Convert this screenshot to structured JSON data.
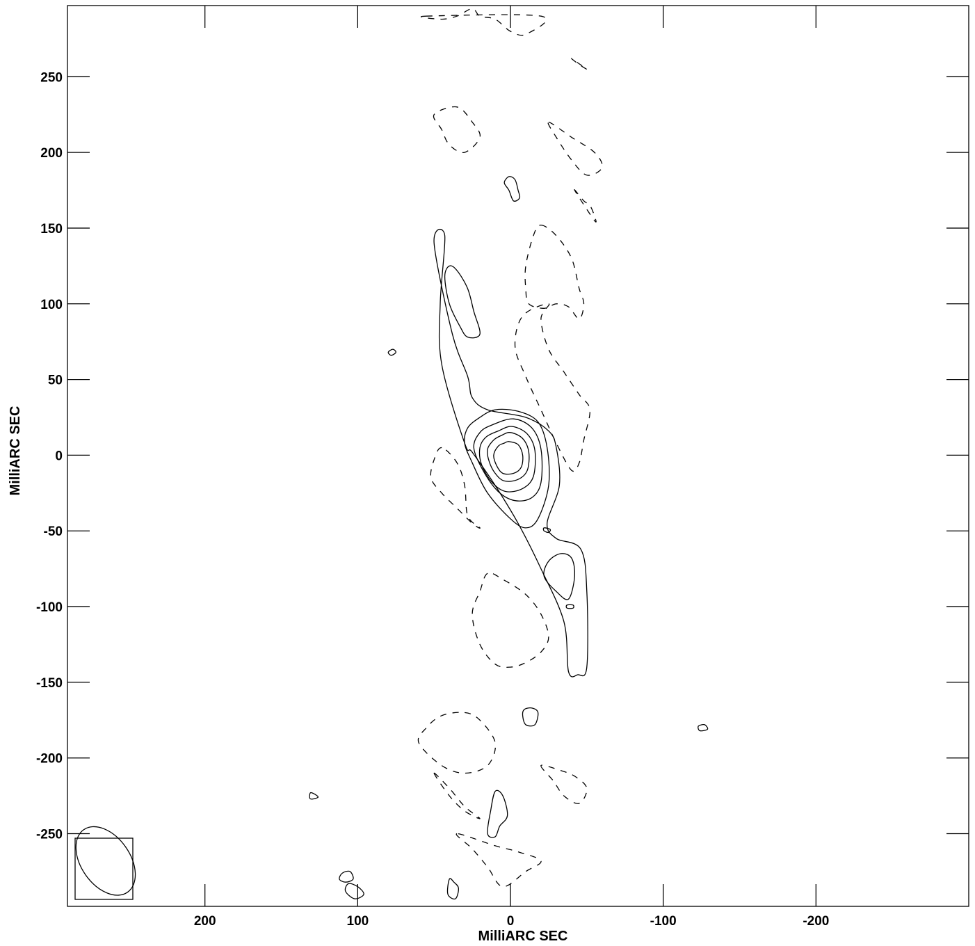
{
  "chart_data": {
    "type": "contour",
    "xlabel": "MilliARC SEC",
    "ylabel": "MilliARC SEC",
    "xlim": [
      290,
      -300
    ],
    "ylim": [
      -298,
      297
    ],
    "x_reversed": true,
    "grid": false,
    "legend": "none",
    "xticks": [
      200,
      100,
      0,
      -100,
      -200
    ],
    "yticks": [
      250,
      200,
      150,
      100,
      50,
      0,
      -50,
      -100,
      -150,
      -200,
      -250
    ],
    "xtick_labels": [
      "200",
      "100",
      "0",
      "-100",
      "-200"
    ],
    "ytick_labels": [
      "250",
      "200",
      "150",
      "100",
      "50",
      "0",
      "-50",
      "-100",
      "-150",
      "-200",
      "-250"
    ],
    "beam": {
      "center": [
        265,
        -268
      ],
      "major": 25,
      "minor": 16,
      "pa_deg": 35
    },
    "positive_contours": [
      {
        "level": 1,
        "points": [
          [
            43,
            145
          ],
          [
            50,
            140
          ],
          [
            38,
            80
          ],
          [
            28,
            52
          ],
          [
            25,
            38
          ],
          [
            15,
            30
          ],
          [
            -10,
            25
          ],
          [
            -25,
            16
          ],
          [
            -30,
            5
          ],
          [
            -32,
            -20
          ],
          [
            -24,
            -45
          ],
          [
            -30,
            -55
          ],
          [
            -46,
            -62
          ],
          [
            -50,
            -90
          ],
          [
            -50,
            -140
          ],
          [
            -44,
            -145
          ],
          [
            -38,
            -143
          ],
          [
            -35,
            -110
          ],
          [
            -20,
            -75
          ],
          [
            -5,
            -45
          ],
          [
            10,
            -20
          ],
          [
            25,
            2
          ],
          [
            30,
            8
          ],
          [
            45,
            60
          ],
          [
            46,
            100
          ]
        ]
      },
      {
        "level": 2,
        "points": [
          [
            -5,
            29
          ],
          [
            -18,
            22
          ],
          [
            -24,
            5
          ],
          [
            -25,
            -20
          ],
          [
            -18,
            -42
          ],
          [
            -10,
            -48
          ],
          [
            0,
            -42
          ],
          [
            15,
            -25
          ],
          [
            25,
            -5
          ],
          [
            30,
            8
          ],
          [
            28,
            18
          ],
          [
            20,
            25
          ],
          [
            10,
            30
          ]
        ]
      },
      {
        "level": 3,
        "points": [
          [
            -2,
            24
          ],
          [
            -14,
            18
          ],
          [
            -20,
            4
          ],
          [
            -20,
            -18
          ],
          [
            -14,
            -28
          ],
          [
            -3,
            -30
          ],
          [
            8,
            -24
          ],
          [
            18,
            -10
          ],
          [
            24,
            5
          ],
          [
            20,
            15
          ],
          [
            12,
            20
          ]
        ]
      },
      {
        "level": 4,
        "points": [
          [
            -1,
            19
          ],
          [
            -11,
            14
          ],
          [
            -16,
            3
          ],
          [
            -15,
            -14
          ],
          [
            -8,
            -22
          ],
          [
            3,
            -24
          ],
          [
            12,
            -18
          ],
          [
            19,
            -6
          ],
          [
            20,
            5
          ],
          [
            16,
            12
          ],
          [
            8,
            16
          ]
        ]
      },
      {
        "level": 5,
        "points": [
          [
            0,
            15
          ],
          [
            -8,
            11
          ],
          [
            -12,
            2
          ],
          [
            -11,
            -10
          ],
          [
            -5,
            -16
          ],
          [
            4,
            -17
          ],
          [
            10,
            -12
          ],
          [
            14,
            -4
          ],
          [
            15,
            4
          ],
          [
            11,
            10
          ],
          [
            6,
            13
          ]
        ]
      },
      {
        "level": 6,
        "points": [
          [
            1,
            9
          ],
          [
            -5,
            7
          ],
          [
            -8,
            0
          ],
          [
            -7,
            -8
          ],
          [
            -2,
            -12
          ],
          [
            5,
            -12
          ],
          [
            9,
            -7
          ],
          [
            11,
            0
          ],
          [
            8,
            6
          ],
          [
            4,
            8
          ]
        ]
      },
      {
        "level": 2,
        "points": [
          [
            40,
            125
          ],
          [
            35,
            122
          ],
          [
            28,
            110
          ],
          [
            24,
            95
          ],
          [
            20,
            80
          ],
          [
            28,
            78
          ],
          [
            33,
            85
          ],
          [
            40,
            100
          ],
          [
            43,
            118
          ]
        ]
      },
      {
        "level": 2,
        "points": [
          [
            -25,
            -70
          ],
          [
            -33,
            -65
          ],
          [
            -40,
            -68
          ],
          [
            -42,
            -80
          ],
          [
            -38,
            -95
          ],
          [
            -30,
            -90
          ],
          [
            -22,
            -80
          ]
        ]
      },
      {
        "level": 1,
        "points": [
          [
            1,
            175
          ],
          [
            4,
            180
          ],
          [
            1,
            184
          ],
          [
            -3,
            182
          ],
          [
            -5,
            175
          ],
          [
            -6,
            170
          ],
          [
            -2,
            168
          ]
        ]
      },
      {
        "level": 1,
        "points": [
          [
            5,
            -225
          ],
          [
            10,
            -222
          ],
          [
            13,
            -235
          ],
          [
            15,
            -250
          ],
          [
            10,
            -252
          ],
          [
            7,
            -245
          ],
          [
            2,
            -238
          ]
        ]
      },
      {
        "level": 1,
        "points": [
          [
            -9,
            -168
          ],
          [
            -14,
            -167
          ],
          [
            -18,
            -170
          ],
          [
            -16,
            -178
          ],
          [
            -10,
            -178
          ],
          [
            -8,
            -172
          ]
        ]
      },
      {
        "level": 1,
        "points": [
          [
            105,
            -275
          ],
          [
            110,
            -276
          ],
          [
            112,
            -280
          ],
          [
            108,
            -282
          ],
          [
            103,
            -280
          ]
        ]
      },
      {
        "level": 1,
        "points": [
          [
            100,
            -285
          ],
          [
            106,
            -283
          ],
          [
            108,
            -288
          ],
          [
            102,
            -293
          ],
          [
            96,
            -290
          ]
        ]
      },
      {
        "level": 1,
        "points": [
          [
            77,
            70
          ],
          [
            80,
            68
          ],
          [
            78,
            66
          ],
          [
            75,
            68
          ]
        ]
      },
      {
        "level": 1,
        "points": [
          [
            128,
            -224
          ],
          [
            131,
            -223
          ],
          [
            131,
            -227
          ],
          [
            126,
            -226
          ]
        ]
      },
      {
        "level": 1,
        "points": [
          [
            -123,
            -179
          ],
          [
            -127,
            -178
          ],
          [
            -129,
            -181
          ],
          [
            -124,
            -182
          ]
        ]
      },
      {
        "level": 1,
        "points": [
          [
            37,
            -282
          ],
          [
            40,
            -280
          ],
          [
            41,
            -290
          ],
          [
            36,
            -293
          ],
          [
            34,
            -286
          ]
        ]
      },
      {
        "level": 1,
        "points": [
          [
            -37,
            -99
          ],
          [
            -41,
            -99
          ],
          [
            -41,
            -101
          ],
          [
            -37,
            -101
          ]
        ]
      },
      {
        "level": 1,
        "points": [
          [
            -22,
            -48
          ],
          [
            -26,
            -49
          ],
          [
            -25,
            -51
          ],
          [
            -22,
            -50
          ]
        ]
      }
    ],
    "negative_contours": [
      {
        "level": -1,
        "points": [
          [
            -20,
            152
          ],
          [
            -30,
            145
          ],
          [
            -40,
            130
          ],
          [
            -45,
            110
          ],
          [
            -48,
            100
          ],
          [
            -45,
            90
          ],
          [
            -38,
            98
          ],
          [
            -30,
            100
          ],
          [
            -22,
            97
          ],
          [
            -12,
            100
          ],
          [
            -10,
            110
          ],
          [
            -10,
            125
          ],
          [
            -15,
            145
          ]
        ]
      },
      {
        "level": -1,
        "points": [
          [
            -25,
            100
          ],
          [
            -20,
            90
          ],
          [
            -25,
            70
          ],
          [
            -35,
            55
          ],
          [
            -45,
            40
          ],
          [
            -52,
            30
          ],
          [
            -48,
            10
          ],
          [
            -45,
            -5
          ],
          [
            -40,
            -10
          ],
          [
            -30,
            8
          ],
          [
            -20,
            30
          ],
          [
            -10,
            52
          ],
          [
            -3,
            72
          ],
          [
            -8,
            92
          ]
        ]
      },
      {
        "level": -1,
        "points": [
          [
            45,
            5
          ],
          [
            50,
            -3
          ],
          [
            52,
            -15
          ],
          [
            45,
            -25
          ],
          [
            35,
            -35
          ],
          [
            25,
            -45
          ],
          [
            20,
            -48
          ],
          [
            28,
            -40
          ],
          [
            30,
            -20
          ],
          [
            35,
            -5
          ]
        ]
      },
      {
        "level": -1,
        "points": [
          [
            15,
            -78
          ],
          [
            20,
            -90
          ],
          [
            25,
            -105
          ],
          [
            20,
            -125
          ],
          [
            10,
            -138
          ],
          [
            0,
            -140
          ],
          [
            -10,
            -137
          ],
          [
            -20,
            -130
          ],
          [
            -25,
            -120
          ],
          [
            -20,
            -105
          ],
          [
            -10,
            -92
          ],
          [
            5,
            -82
          ]
        ]
      },
      {
        "level": -1,
        "points": [
          [
            50,
            225
          ],
          [
            45,
            215
          ],
          [
            40,
            205
          ],
          [
            30,
            200
          ],
          [
            20,
            210
          ],
          [
            25,
            220
          ],
          [
            35,
            230
          ]
        ]
      },
      {
        "level": -1,
        "points": [
          [
            -25,
            220
          ],
          [
            -40,
            210
          ],
          [
            -55,
            200
          ],
          [
            -60,
            190
          ],
          [
            -50,
            185
          ],
          [
            -40,
            195
          ],
          [
            -30,
            210
          ]
        ]
      },
      {
        "level": -1,
        "points": [
          [
            30,
            -170
          ],
          [
            20,
            -175
          ],
          [
            10,
            -190
          ],
          [
            15,
            -205
          ],
          [
            30,
            -210
          ],
          [
            45,
            -205
          ],
          [
            60,
            -190
          ],
          [
            55,
            -180
          ],
          [
            45,
            -172
          ]
        ]
      },
      {
        "level": -1,
        "points": [
          [
            50,
            -210
          ],
          [
            40,
            -225
          ],
          [
            30,
            -235
          ],
          [
            20,
            -240
          ],
          [
            30,
            -232
          ],
          [
            40,
            -220
          ]
        ]
      },
      {
        "level": -1,
        "points": [
          [
            -20,
            -205
          ],
          [
            -28,
            -215
          ],
          -1,
          [
            -35,
            -225
          ],
          [
            -45,
            -230
          ],
          [
            -50,
            -220
          ],
          [
            -42,
            -212
          ],
          [
            -32,
            -208
          ]
        ]
      },
      {
        "level": -1,
        "points": [
          [
            35,
            -250
          ],
          [
            25,
            -260
          ],
          [
            15,
            -272
          ],
          [
            5,
            -285
          ],
          [
            -10,
            -275
          ],
          [
            -20,
            -268
          ],
          [
            -5,
            -262
          ],
          [
            10,
            -258
          ]
        ]
      },
      {
        "level": -1,
        "points": [
          [
            55,
            290
          ],
          [
            45,
            288
          ],
          [
            35,
            290
          ],
          [
            25,
            295
          ],
          [
            20,
            290
          ],
          [
            10,
            288
          ],
          [
            0,
            280
          ],
          [
            -10,
            278
          ],
          [
            -20,
            290
          ]
        ]
      },
      {
        "level": -1,
        "points": [
          [
            -40,
            262
          ],
          [
            -45,
            258
          ],
          [
            -50,
            255
          ]
        ]
      },
      {
        "level": -1,
        "points": [
          [
            -42,
            175
          ],
          [
            -48,
            168
          ],
          [
            -52,
            165
          ],
          [
            -55,
            158
          ],
          [
            -55,
            155
          ]
        ]
      }
    ]
  }
}
